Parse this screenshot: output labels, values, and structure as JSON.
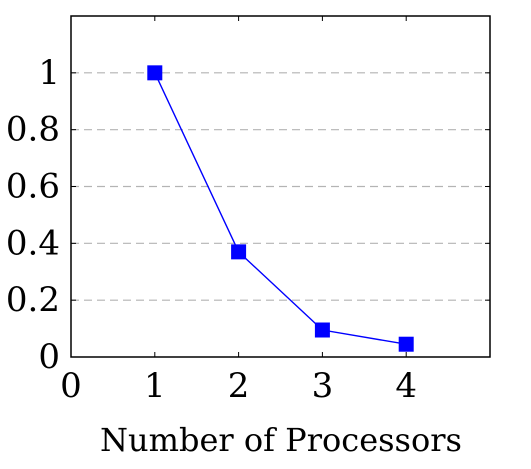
{
  "chart_data": {
    "type": "line",
    "title": "",
    "xlabel": "Number of Processors",
    "ylabel": "",
    "xlim": [
      0,
      5
    ],
    "ylim": [
      0,
      1.2
    ],
    "x_ticks": [
      0,
      1,
      2,
      3,
      4
    ],
    "x_tick_labels": [
      "0",
      "1",
      "2",
      "3",
      "4"
    ],
    "y_ticks": [
      0,
      0.2,
      0.4,
      0.6,
      0.8,
      1
    ],
    "y_tick_labels": [
      "0",
      "0.2",
      "0.4",
      "0.6",
      "0.8",
      "1"
    ],
    "grid": "horizontal dashed",
    "legend": "none",
    "series": [
      {
        "marker": "square",
        "color": "#0000ff",
        "x": [
          1,
          2,
          3,
          4
        ],
        "y": [
          1.0,
          0.37,
          0.095,
          0.045
        ]
      }
    ]
  }
}
